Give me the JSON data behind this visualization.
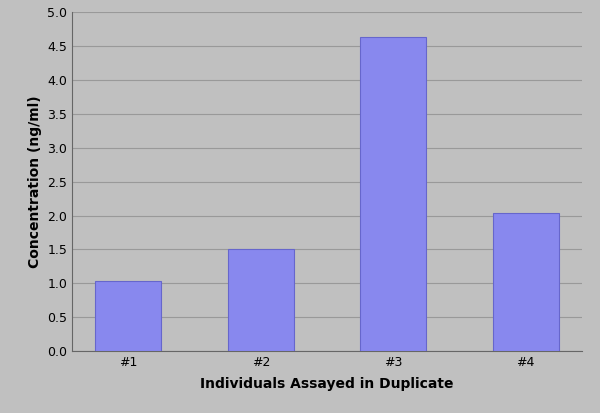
{
  "categories": [
    "#1",
    "#2",
    "#3",
    "#4"
  ],
  "values": [
    1.04,
    1.5,
    4.63,
    2.04
  ],
  "bar_color": "#8888ee",
  "bar_edgecolor": "#6666cc",
  "background_color": "#c0c0c0",
  "plot_bg_color": "#c0c0c0",
  "ylabel": "Concentration (ng/ml)",
  "xlabel": "Individuals Assayed in Duplicate",
  "ylim": [
    0,
    5
  ],
  "yticks": [
    0,
    0.5,
    1.0,
    1.5,
    2.0,
    2.5,
    3.0,
    3.5,
    4.0,
    4.5,
    5.0
  ],
  "ylabel_fontsize": 10,
  "xlabel_fontsize": 10,
  "tick_fontsize": 9,
  "bar_width": 0.5,
  "grid_color": "#999999",
  "spine_color": "#666666"
}
